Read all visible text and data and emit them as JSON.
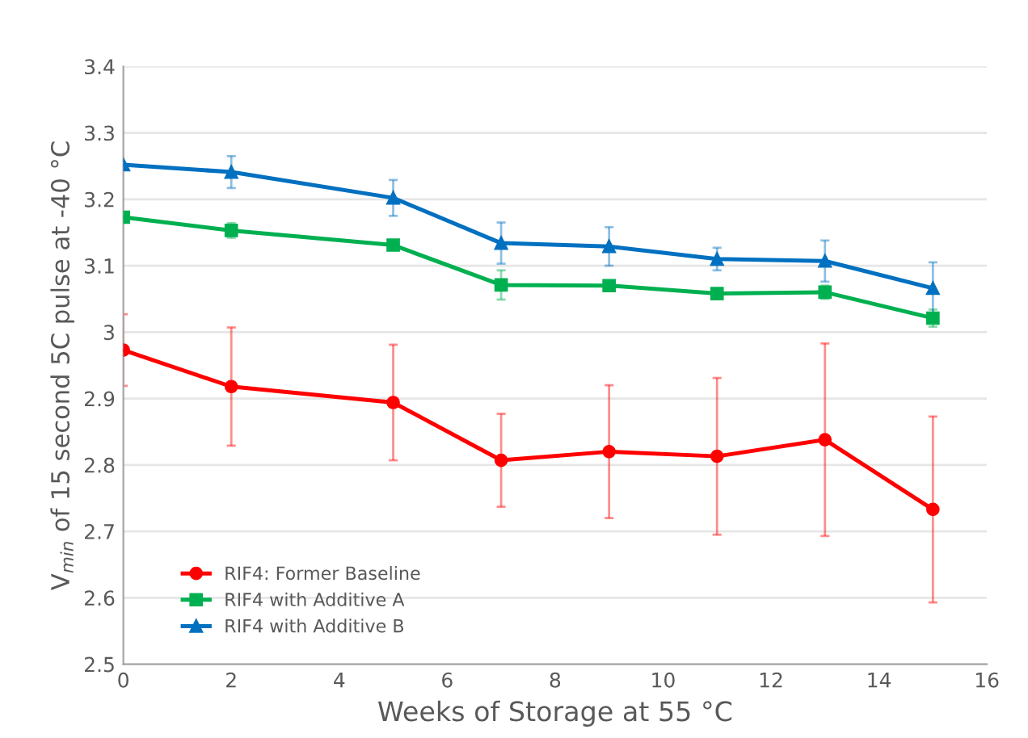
{
  "chart_data": {
    "type": "line",
    "xlabel": "Weeks of Storage at 55 °C",
    "ylabel": "V$_{min}$ of 15 second 5C pulse at -40 °C",
    "xlim": [
      0,
      16
    ],
    "xticks": [
      0,
      2,
      4,
      6,
      8,
      10,
      12,
      14,
      16
    ],
    "ylim": [
      2.5,
      3.4
    ],
    "yticks": [
      2.5,
      2.6,
      2.7,
      2.8,
      2.9,
      {
        "value": 3.0,
        "label": "3"
      },
      3.1,
      3.2,
      3.3,
      3.4
    ],
    "grid": "y",
    "legend": "bottom left",
    "series": [
      {
        "name": "RIF4: Former Baseline",
        "color": "#ff0000",
        "marker": "circle",
        "x": [
          0,
          2,
          5,
          7,
          9,
          11,
          13,
          15
        ],
        "values": [
          2.973,
          2.918,
          2.894,
          2.807,
          2.82,
          2.813,
          2.838,
          2.733
        ],
        "errors": [
          0.054,
          0.089,
          0.087,
          0.07,
          0.1,
          0.118,
          0.145,
          0.14
        ]
      },
      {
        "name": "RIF4 with Additive A",
        "color": "#00b050",
        "marker": "square",
        "x": [
          0,
          2,
          5,
          7,
          9,
          11,
          13,
          15
        ],
        "values": [
          3.173,
          3.153,
          3.131,
          3.071,
          3.07,
          3.058,
          3.06,
          3.021
        ],
        "errors": [
          null,
          0.011,
          0.006,
          0.022,
          0.007,
          0.005,
          0.01,
          0.013
        ]
      },
      {
        "name": "RIF4 with Additive B",
        "color": "#0070c0",
        "marker": "triangle",
        "x": [
          0,
          2,
          5,
          7,
          9,
          11,
          13,
          15
        ],
        "values": [
          3.252,
          3.241,
          3.202,
          3.134,
          3.129,
          3.11,
          3.107,
          3.066
        ],
        "errors": [
          null,
          0.024,
          0.027,
          0.031,
          0.029,
          0.017,
          0.031,
          0.039
        ]
      }
    ]
  }
}
